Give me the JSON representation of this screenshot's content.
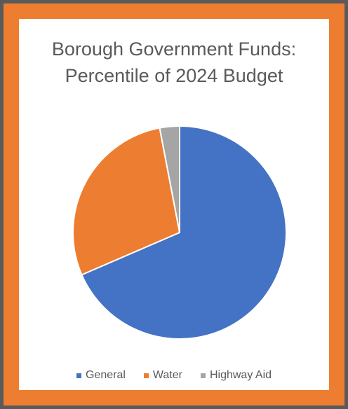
{
  "chart_data": {
    "type": "pie",
    "title_lines": [
      "Borough Government Funds:",
      "Percentile of 2024 Budget"
    ],
    "slices": [
      {
        "name": "General",
        "value": 68.5,
        "color": "#4472c4"
      },
      {
        "name": "Water",
        "value": 28.5,
        "color": "#ed7d31"
      },
      {
        "name": "Highway Aid",
        "value": 3.0,
        "color": "#a5a5a5"
      }
    ],
    "legend_position": "bottom"
  }
}
